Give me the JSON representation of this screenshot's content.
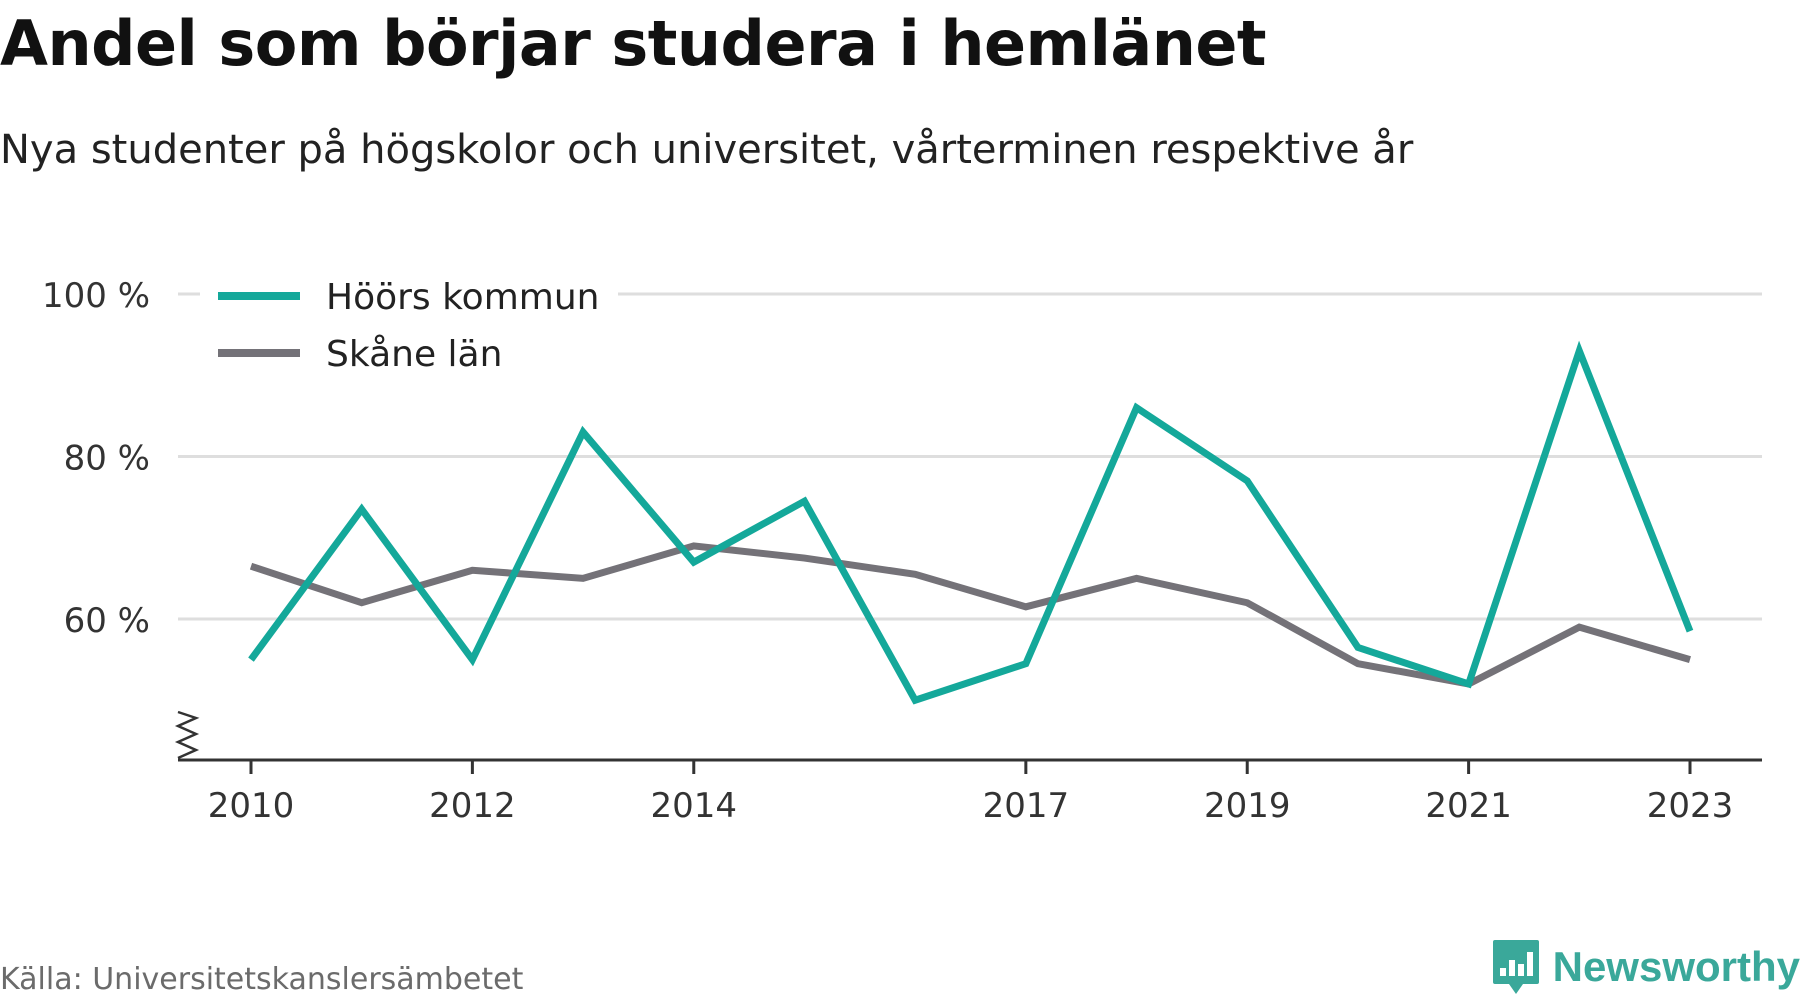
{
  "title": "Andel som börjar studera i hemlänet",
  "subtitle": "Nya studenter på högskolor och universitet, vårterminen respektive år",
  "source": "Källa: Universitetskanslersämbetet",
  "brand": "Newsworthy",
  "colors": {
    "hoor": "#14a89a",
    "skane": "#747278",
    "grid": "#dedede",
    "axis": "#333333",
    "brand": "#3aa89a"
  },
  "chart_data": {
    "type": "line",
    "x": [
      2010,
      2011,
      2012,
      2013,
      2014,
      2015,
      2016,
      2017,
      2018,
      2019,
      2020,
      2021,
      2022,
      2023
    ],
    "x_ticks": [
      "2010",
      "2012",
      "2014",
      "2017",
      "2019",
      "2021",
      "2023"
    ],
    "y_ticks": [
      "100 %",
      "80 %",
      "60 %"
    ],
    "y_tick_values": [
      100,
      80,
      60
    ],
    "ylim": [
      43,
      100
    ],
    "y_axis_break": true,
    "grid": true,
    "legend_position": "top-left",
    "series": [
      {
        "name": "Höörs kommun",
        "color": "#14a89a",
        "values": [
          55,
          73.5,
          55,
          83,
          67,
          74.5,
          50,
          54.5,
          86,
          77,
          56.5,
          52,
          93,
          58.5
        ]
      },
      {
        "name": "Skåne län",
        "color": "#747278",
        "values": [
          66.5,
          62,
          66,
          65,
          69,
          67.5,
          65.5,
          61.5,
          65,
          62,
          54.5,
          52,
          59,
          55
        ]
      }
    ]
  }
}
